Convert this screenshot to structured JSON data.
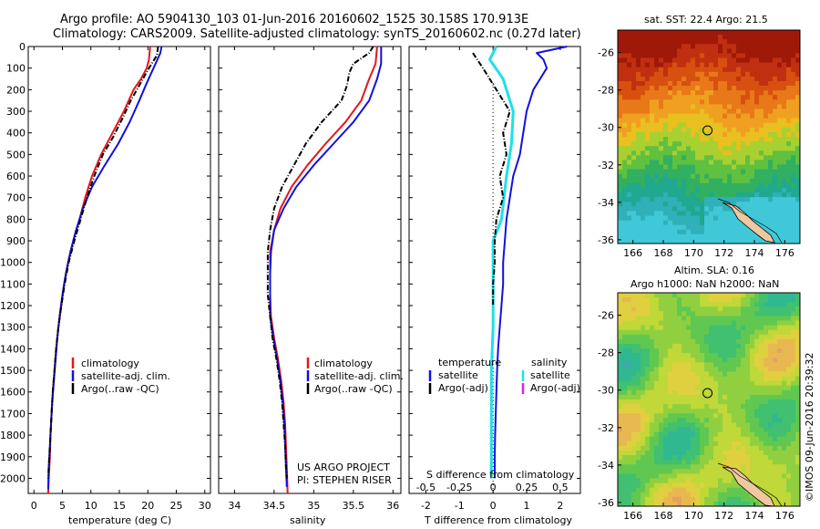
{
  "header": {
    "line1": "Argo profile: AO 5904130_103 01-Jun-2016 20160602_1525 30.158S 170.913E",
    "line2": "Climatology: CARS2009. Satellite-adjusted climatology: synTS_20160602.nc (0.27d later)"
  },
  "credits": {
    "project": "US ARGO PROJECT",
    "pi": "PI: STEPHEN RISER",
    "stamp": "©IMOS 09-Jun-2016 20:39:32"
  },
  "colors": {
    "climatology": "#e8141a",
    "satellite": "#1010e0",
    "argo": "#000000",
    "salinity_sat": "#1fe0e8",
    "salinity_argo": "#e020e0"
  },
  "chart_data": [
    {
      "type": "line",
      "id": "temperature",
      "xlabel": "temperature (deg C)",
      "xlim": [
        -1,
        31
      ],
      "xticks": [
        0,
        5,
        10,
        15,
        20,
        25,
        30
      ],
      "ylim": [
        0,
        2070
      ],
      "yticks": [
        0,
        100,
        200,
        300,
        400,
        500,
        600,
        700,
        800,
        900,
        1000,
        1100,
        1200,
        1300,
        1400,
        1500,
        1600,
        1700,
        1800,
        1900,
        2000
      ],
      "legend": [
        "climatology",
        "satellite-adj. clim.",
        "Argo(..raw -QC)"
      ],
      "series": [
        {
          "name": "climatology",
          "color_key": "climatology",
          "points": [
            [
              20.4,
              0
            ],
            [
              20.2,
              60
            ],
            [
              19.8,
              100
            ],
            [
              18.8,
              150
            ],
            [
              17.5,
              200
            ],
            [
              15.8,
              300
            ],
            [
              13.8,
              400
            ],
            [
              11.8,
              500
            ],
            [
              10.2,
              600
            ],
            [
              9.0,
              700
            ],
            [
              8.0,
              800
            ],
            [
              6.9,
              900
            ],
            [
              6.0,
              1000
            ],
            [
              5.3,
              1100
            ],
            [
              4.8,
              1200
            ],
            [
              4.3,
              1300
            ],
            [
              3.9,
              1400
            ],
            [
              3.6,
              1500
            ],
            [
              3.3,
              1600
            ],
            [
              3.1,
              1700
            ],
            [
              2.9,
              1800
            ],
            [
              2.8,
              1900
            ],
            [
              2.6,
              2000
            ],
            [
              2.5,
              2070
            ]
          ]
        },
        {
          "name": "satellite-adj. clim.",
          "color_key": "satellite",
          "points": [
            [
              22.4,
              0
            ],
            [
              22.2,
              30
            ],
            [
              21.0,
              100
            ],
            [
              19.8,
              170
            ],
            [
              18.5,
              250
            ],
            [
              16.8,
              350
            ],
            [
              14.8,
              450
            ],
            [
              12.2,
              560
            ],
            [
              10.2,
              650
            ],
            [
              8.6,
              750
            ],
            [
              7.4,
              850
            ],
            [
              6.4,
              950
            ],
            [
              5.6,
              1050
            ],
            [
              5.0,
              1150
            ],
            [
              4.5,
              1250
            ],
            [
              4.1,
              1350
            ],
            [
              3.8,
              1450
            ],
            [
              3.5,
              1550
            ],
            [
              3.2,
              1650
            ],
            [
              3.0,
              1750
            ],
            [
              2.8,
              1850
            ],
            [
              2.6,
              1950
            ],
            [
              2.5,
              2050
            ]
          ]
        },
        {
          "name": "Argo(..raw -QC)",
          "color_key": "argo",
          "dashed": true,
          "points": [
            [
              21.8,
              0
            ],
            [
              21.6,
              40
            ],
            [
              20.2,
              100
            ],
            [
              18.5,
              180
            ],
            [
              17.0,
              250
            ],
            [
              15.6,
              330
            ],
            [
              13.9,
              420
            ],
            [
              12.1,
              500
            ],
            [
              10.6,
              600
            ],
            [
              9.3,
              700
            ],
            [
              8.2,
              800
            ],
            [
              7.1,
              900
            ],
            [
              6.1,
              1000
            ],
            [
              5.4,
              1100
            ],
            [
              4.8,
              1200
            ],
            [
              4.3,
              1300
            ],
            [
              3.9,
              1400
            ],
            [
              3.6,
              1500
            ],
            [
              3.3,
              1600
            ],
            [
              3.1,
              1700
            ],
            [
              2.9,
              1800
            ],
            [
              2.7,
              1900
            ],
            [
              2.5,
              2000
            ]
          ]
        }
      ]
    },
    {
      "type": "line",
      "id": "salinity",
      "xlabel": "salinity",
      "xlim": [
        33.8,
        36.1
      ],
      "xticks": [
        34,
        34.5,
        35,
        35.5,
        36
      ],
      "xticklabels": [
        "34",
        "34.5",
        "35",
        "35.5",
        "36"
      ],
      "ylim": [
        0,
        2070
      ],
      "legend": [
        "climatology",
        "satellite-adj. clim.",
        "Argo(..raw -QC)"
      ],
      "series": [
        {
          "name": "climatology",
          "color_key": "climatology",
          "points": [
            [
              35.8,
              0
            ],
            [
              35.78,
              80
            ],
            [
              35.7,
              150
            ],
            [
              35.6,
              250
            ],
            [
              35.4,
              350
            ],
            [
              35.15,
              450
            ],
            [
              34.92,
              550
            ],
            [
              34.72,
              650
            ],
            [
              34.58,
              750
            ],
            [
              34.5,
              850
            ],
            [
              34.45,
              950
            ],
            [
              34.45,
              1050
            ],
            [
              34.45,
              1150
            ],
            [
              34.46,
              1250
            ],
            [
              34.5,
              1350
            ],
            [
              34.55,
              1450
            ],
            [
              34.59,
              1550
            ],
            [
              34.62,
              1650
            ],
            [
              34.64,
              1750
            ],
            [
              34.65,
              1850
            ],
            [
              34.66,
              1950
            ],
            [
              34.67,
              2070
            ]
          ]
        },
        {
          "name": "satellite-adj. clim.",
          "color_key": "satellite",
          "points": [
            [
              35.85,
              0
            ],
            [
              35.85,
              80
            ],
            [
              35.8,
              150
            ],
            [
              35.7,
              250
            ],
            [
              35.5,
              350
            ],
            [
              35.25,
              450
            ],
            [
              35.0,
              550
            ],
            [
              34.78,
              650
            ],
            [
              34.62,
              750
            ],
            [
              34.5,
              850
            ],
            [
              34.46,
              950
            ],
            [
              34.45,
              1050
            ],
            [
              34.45,
              1150
            ],
            [
              34.45,
              1250
            ],
            [
              34.49,
              1350
            ],
            [
              34.54,
              1450
            ],
            [
              34.58,
              1550
            ],
            [
              34.61,
              1650
            ],
            [
              34.63,
              1750
            ],
            [
              34.64,
              1850
            ],
            [
              34.65,
              1950
            ],
            [
              34.66,
              2040
            ]
          ]
        },
        {
          "name": "Argo(..raw -QC)",
          "color_key": "argo",
          "dashed": true,
          "points": [
            [
              35.75,
              0
            ],
            [
              35.7,
              30
            ],
            [
              35.5,
              80
            ],
            [
              35.45,
              120
            ],
            [
              35.42,
              180
            ],
            [
              35.35,
              250
            ],
            [
              35.1,
              350
            ],
            [
              34.9,
              450
            ],
            [
              34.75,
              550
            ],
            [
              34.6,
              650
            ],
            [
              34.5,
              750
            ],
            [
              34.45,
              850
            ],
            [
              34.42,
              950
            ],
            [
              34.42,
              1050
            ],
            [
              34.42,
              1150
            ],
            [
              34.45,
              1250
            ],
            [
              34.48,
              1350
            ],
            [
              34.53,
              1450
            ],
            [
              34.57,
              1550
            ],
            [
              34.6,
              1650
            ],
            [
              34.62,
              1750
            ],
            [
              34.64,
              1850
            ],
            [
              34.65,
              1950
            ],
            [
              34.66,
              2000
            ]
          ]
        }
      ]
    },
    {
      "type": "line",
      "id": "difference",
      "xlabel": "T difference from climatology",
      "xlabel_top": "S difference from climatology",
      "xlim": [
        -2.5,
        2.6
      ],
      "xticks": [
        -2,
        -1,
        0,
        1,
        2
      ],
      "xticks_top": [
        -0.5,
        -0.25,
        0,
        0.25,
        0.5
      ],
      "xticklabels_top": [
        "-0.5",
        "-0.25",
        "0",
        "0.25",
        "0.5"
      ],
      "ylim": [
        0,
        2070
      ],
      "legend_temperature": {
        "heading": "temperature",
        "items": [
          "satellite",
          "Argo(-adj)"
        ]
      },
      "legend_salinity": {
        "heading": "salinity",
        "items": [
          "satellite",
          "Argo(-adj)"
        ]
      },
      "series": [
        {
          "name": "T satellite",
          "color_key": "satellite",
          "points": [
            [
              2.2,
              0
            ],
            [
              1.3,
              30
            ],
            [
              1.5,
              60
            ],
            [
              1.6,
              100
            ],
            [
              1.4,
              150
            ],
            [
              1.2,
              200
            ],
            [
              1.0,
              300
            ],
            [
              0.9,
              400
            ],
            [
              0.8,
              500
            ],
            [
              0.6,
              600
            ],
            [
              0.5,
              700
            ],
            [
              0.4,
              800
            ],
            [
              0.35,
              900
            ],
            [
              0.3,
              1000
            ],
            [
              0.3,
              1100
            ],
            [
              0.25,
              1200
            ],
            [
              0.2,
              1300
            ],
            [
              0.15,
              1400
            ],
            [
              0.12,
              1500
            ],
            [
              0.1,
              1600
            ],
            [
              0.08,
              1700
            ],
            [
              0.06,
              1800
            ],
            [
              0.05,
              1900
            ],
            [
              0.05,
              2000
            ]
          ]
        },
        {
          "name": "S satellite",
          "color_key": "salinity_sat",
          "points": [
            [
              0.1,
              0
            ],
            [
              -0.1,
              60
            ],
            [
              0.3,
              150
            ],
            [
              0.6,
              300
            ],
            [
              0.55,
              450
            ],
            [
              0.4,
              600
            ],
            [
              0.25,
              800
            ],
            [
              0.0,
              900
            ],
            [
              0.0,
              1100
            ],
            [
              0.0,
              1300
            ],
            [
              -0.05,
              1500
            ],
            [
              -0.05,
              1700
            ],
            [
              -0.05,
              1900
            ],
            [
              -0.05,
              2000
            ]
          ]
        },
        {
          "name": "Argo(-adj)",
          "color_key": "argo",
          "dashed": true,
          "points": [
            [
              -0.6,
              30
            ],
            [
              -0.3,
              100
            ],
            [
              0.1,
              200
            ],
            [
              0.5,
              300
            ],
            [
              0.3,
              400
            ],
            [
              0.4,
              500
            ],
            [
              0.2,
              600
            ],
            [
              0.3,
              700
            ],
            [
              0.1,
              800
            ],
            [
              0.05,
              900
            ],
            [
              0.05,
              1000
            ],
            [
              0.0,
              1100
            ],
            [
              0.0,
              1200
            ]
          ]
        }
      ]
    },
    {
      "type": "heatmap",
      "id": "sst_map",
      "title": "sat. SST: 22.4 Argo: 21.5",
      "xlim": [
        165,
        177
      ],
      "ylim": [
        -36.2,
        -24.8
      ],
      "xticks": [
        166,
        168,
        170,
        172,
        174,
        176
      ],
      "yticks": [
        -26,
        -28,
        -30,
        -32,
        -34,
        -36
      ],
      "marker": [
        170.913,
        -30.158
      ]
    },
    {
      "type": "heatmap",
      "id": "sla_map",
      "title_line1": "Altim. SLA: 0.16",
      "title_line2": "Argo h1000: NaN h2000: NaN",
      "xlim": [
        165,
        177
      ],
      "ylim": [
        -36.2,
        -24.8
      ],
      "xticks": [
        166,
        168,
        170,
        172,
        174,
        176
      ],
      "yticks": [
        -26,
        -28,
        -30,
        -32,
        -34,
        -36
      ],
      "marker": [
        170.913,
        -30.158
      ]
    }
  ]
}
